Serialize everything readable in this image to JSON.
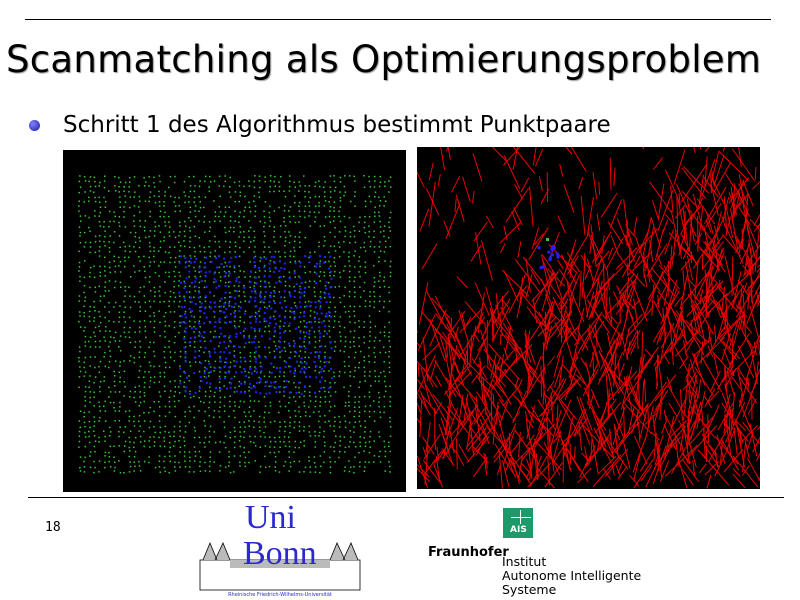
{
  "slide": {
    "title": "Scanmatching als Optimierungsproblem",
    "bullet": "Schritt 1 des Algorithmus bestimmt Punktpaare",
    "page_number": "18"
  },
  "images": {
    "left": {
      "colors": {
        "background": "#000000",
        "scan_a": "#33cc33",
        "scan_b": "#2222ff"
      }
    },
    "right": {
      "colors": {
        "background": "#000000",
        "pairs": "#ee0000",
        "points": "#2222ff",
        "marker": "#33cc33"
      }
    }
  },
  "footer": {
    "uni_logo": {
      "line1": "Uni",
      "line2": "Bonn",
      "caption": "Rheinische Friedrich-Wilhelms-Universität"
    },
    "fraunhofer": {
      "badge": "AIS",
      "name": "Fraunhofer",
      "lines": [
        "Institut",
        "Autonome Intelligente",
        "Systeme"
      ]
    },
    "accent_color": "#1e9a6a"
  }
}
